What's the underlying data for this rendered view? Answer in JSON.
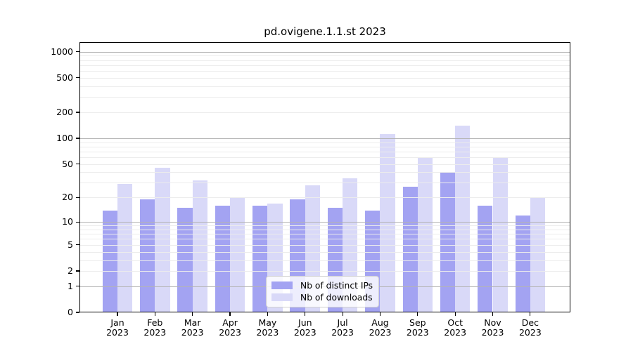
{
  "chart_data": {
    "type": "bar",
    "title": "pd.ovigene.1.1.st 2023",
    "categories": [
      "Jan",
      "Feb",
      "Mar",
      "Apr",
      "May",
      "Jun",
      "Jul",
      "Aug",
      "Sep",
      "Oct",
      "Nov",
      "Dec"
    ],
    "year": "2023",
    "series": [
      {
        "name": "Nb of distinct IPs",
        "color": "#a3a3f2",
        "values": [
          14,
          19,
          15,
          16,
          16,
          19,
          15,
          14,
          27,
          40,
          16,
          12
        ]
      },
      {
        "name": "Nb of downloads",
        "color": "#d9d9f8",
        "values": [
          29,
          45,
          32,
          20,
          17,
          28,
          34,
          112,
          59,
          140,
          59,
          20
        ]
      }
    ],
    "yscale": "log10(1+value)",
    "ylim": [
      0,
      1290
    ],
    "yticks": [
      0,
      1,
      2,
      5,
      10,
      20,
      50,
      100,
      200,
      500,
      1000
    ],
    "grid": {
      "major": [
        1,
        10,
        100,
        1000
      ],
      "minor": [
        2,
        3,
        4,
        5,
        6,
        7,
        8,
        9,
        20,
        30,
        40,
        50,
        60,
        70,
        80,
        90,
        200,
        300,
        400,
        500,
        600,
        700,
        800,
        900
      ]
    },
    "legend": {
      "position": "lower center"
    },
    "colors": {
      "bar_distinct_ips": "#a3a3f2",
      "bar_downloads": "#d9d9f8",
      "grid_major": "#b3b3b3",
      "grid_minor": "#ececec",
      "axis": "#000000",
      "text": "#000000",
      "background": "#ffffff"
    }
  }
}
